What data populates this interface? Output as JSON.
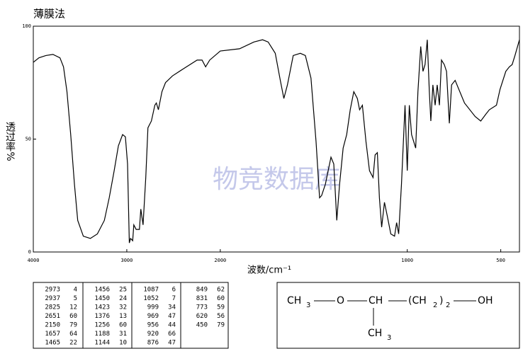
{
  "chart_data": {
    "type": "line",
    "title": "薄膜法",
    "xlabel": "波数/cm⁻¹",
    "ylabel": "透过率%",
    "watermark": "物竞数据库",
    "xlim": [
      4000,
      400
    ],
    "x_expansion": {
      "below": 2000,
      "factor": 2
    },
    "ylim": [
      0,
      100
    ],
    "xticks": [
      4000,
      3000,
      2000,
      1000,
      500
    ],
    "yticks": [
      0,
      50,
      100
    ],
    "color": "#000000",
    "x": [
      4000,
      3940,
      3865,
      3790,
      3715,
      3677,
      3640,
      3600,
      3560,
      3525,
      3465,
      3390,
      3315,
      3240,
      3188,
      3135,
      3090,
      3045,
      3015,
      2992,
      2973,
      2960,
      2937,
      2925,
      2900,
      2865,
      2850,
      2826,
      2797,
      2774,
      2737,
      2700,
      2684,
      2662,
      2624,
      2586,
      2511,
      2400,
      2248,
      2195,
      2157,
      2113,
      2000,
      1897,
      1820,
      1774,
      1744,
      1706,
      1679,
      1660,
      1641,
      1610,
      1572,
      1545,
      1515,
      1488,
      1469,
      1458,
      1438,
      1423,
      1408,
      1393,
      1377,
      1362,
      1343,
      1324,
      1305,
      1286,
      1267,
      1255,
      1240,
      1221,
      1202,
      1183,
      1172,
      1160,
      1149,
      1137,
      1122,
      1107,
      1088,
      1068,
      1057,
      1046,
      1031,
      1012,
      1000,
      989,
      977,
      966,
      955,
      943,
      928,
      916,
      905,
      893,
      882,
      874,
      863,
      851,
      840,
      828,
      817,
      802,
      790,
      775,
      763,
      744,
      694,
      637,
      607,
      580,
      561,
      523,
      504,
      473,
      454,
      439,
      424,
      400
    ],
    "values": [
      84,
      86,
      87,
      87.5,
      86,
      82,
      71,
      52,
      30,
      14,
      7,
      6,
      8,
      14,
      24,
      36,
      47,
      52,
      51,
      39,
      4,
      6,
      5,
      12,
      10,
      10,
      19,
      12,
      33,
      55,
      58,
      65,
      66,
      63,
      71,
      75,
      78,
      81,
      85,
      85,
      82,
      85,
      89,
      90,
      93,
      94,
      93,
      88,
      76,
      68,
      74,
      87,
      88,
      87,
      77,
      49,
      24,
      25,
      30,
      36,
      42,
      39,
      14,
      30,
      46,
      52,
      63,
      71,
      68,
      63,
      65,
      49,
      36,
      33,
      43,
      44,
      24,
      11,
      22,
      16,
      8,
      7,
      13,
      8,
      30,
      65,
      36,
      65,
      52,
      49,
      46,
      71,
      91,
      80,
      83,
      94,
      71,
      58,
      74,
      65,
      74,
      65,
      85,
      83,
      80,
      57,
      74,
      76,
      66,
      60,
      58,
      61,
      63,
      65,
      72,
      80,
      82,
      83,
      87,
      94
    ]
  },
  "table": {
    "columns": [
      [
        [
          "2973",
          "4"
        ],
        [
          "2937",
          "5"
        ],
        [
          "2825",
          "12"
        ],
        [
          "2651",
          "60"
        ],
        [
          "2150",
          "79"
        ],
        [
          "1657",
          "64"
        ],
        [
          "1465",
          "22"
        ]
      ],
      [
        [
          "1456",
          "25"
        ],
        [
          "1450",
          "24"
        ],
        [
          "1423",
          "32"
        ],
        [
          "1376",
          "13"
        ],
        [
          "1256",
          "60"
        ],
        [
          "1188",
          "31"
        ],
        [
          "1144",
          "10"
        ]
      ],
      [
        [
          "1087",
          "6"
        ],
        [
          "1052",
          "7"
        ],
        [
          "999",
          "34"
        ],
        [
          "969",
          "47"
        ],
        [
          "956",
          "44"
        ],
        [
          "920",
          "66"
        ],
        [
          "876",
          "47"
        ]
      ],
      [
        [
          "849",
          "62"
        ],
        [
          "831",
          "60"
        ],
        [
          "773",
          "59"
        ],
        [
          "620",
          "56"
        ],
        [
          "450",
          "79"
        ]
      ]
    ]
  },
  "structure": {
    "parts": [
      "CH",
      "3",
      "O",
      "CH",
      "(CH",
      "2",
      ")",
      "2",
      "OH",
      "CH",
      "3"
    ]
  }
}
